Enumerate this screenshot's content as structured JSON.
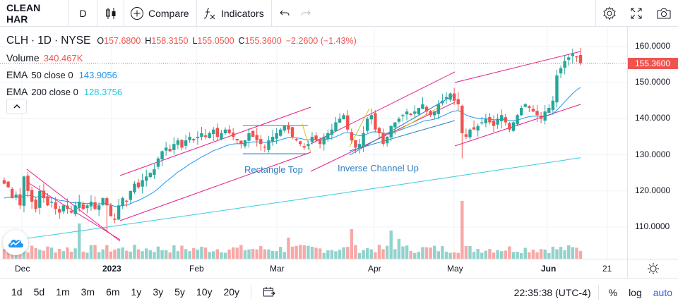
{
  "toolbar": {
    "symbol": "CLEAN HAR",
    "interval": "D",
    "compare_label": "Compare",
    "indicators_label": "Indicators"
  },
  "legend": {
    "ticker": "CLH",
    "interval": "1D",
    "exchange": "NYSE",
    "open_label": "O",
    "open": "157.6800",
    "high_label": "H",
    "high": "158.3150",
    "low_label": "L",
    "low": "155.0500",
    "close_label": "C",
    "close": "155.3600",
    "change": "−2.2600 (−1.43%)",
    "volume_label": "Volume",
    "volume": "340.467K",
    "ema50_label": "EMA",
    "ema50_params": "50 close 0",
    "ema50_value": "143.9056",
    "ema200_label": "EMA",
    "ema200_params": "200 close 0",
    "ema200_value": "128.3756"
  },
  "price_scale": {
    "ticks": [
      "160.0000",
      "150.0000",
      "140.0000",
      "130.0000",
      "120.0000",
      "110.0000"
    ],
    "last_price": "155.3600"
  },
  "time_scale": {
    "ticks": [
      {
        "label": "Dec",
        "bold": false
      },
      {
        "label": "2023",
        "bold": true
      },
      {
        "label": "Feb",
        "bold": false
      },
      {
        "label": "Mar",
        "bold": false
      },
      {
        "label": "Apr",
        "bold": false
      },
      {
        "label": "May",
        "bold": false
      },
      {
        "label": "Jun",
        "bold": true
      },
      {
        "label": "21",
        "bold": false
      }
    ]
  },
  "annotations": {
    "rectangle_top": "Rectangle Top",
    "inverse_channel_up": "Inverse Channel Up"
  },
  "bottom": {
    "ranges": [
      "1d",
      "5d",
      "1m",
      "3m",
      "6m",
      "1y",
      "3y",
      "5y",
      "10y",
      "20y"
    ],
    "time": "22:35:38 (UTC-4)",
    "percent": "%",
    "log": "log",
    "auto": "auto"
  },
  "colors": {
    "up": "#26a69a",
    "down": "#ef5350",
    "ema50": "#2196f3",
    "ema200": "#26c6da",
    "pattern": "#e91e8c",
    "accent": "#2962ff"
  },
  "chart_data": {
    "type": "candlestick",
    "symbol": "CLH",
    "interval": "1D",
    "ylim": [
      103,
      166
    ],
    "x_ticks": [
      "Dec",
      "2023",
      "Feb",
      "Mar",
      "Apr",
      "May",
      "Jun",
      "21"
    ],
    "y_ticks": [
      160,
      150,
      140,
      130,
      120,
      110
    ],
    "ema50_last": 143.9056,
    "ema200_last": 128.3756,
    "last": {
      "open": 157.68,
      "high": 158.315,
      "low": 155.05,
      "close": 155.36,
      "volume": "340.467K"
    },
    "closes": [
      122,
      121,
      118,
      119,
      116,
      124,
      120,
      117,
      115,
      120,
      118,
      116,
      117,
      115,
      114,
      116,
      115,
      114,
      116,
      117,
      115,
      116,
      117,
      115,
      116,
      118,
      116,
      113,
      112,
      116,
      118,
      117,
      120,
      122,
      121,
      123,
      124,
      125,
      126,
      129,
      131,
      132,
      131,
      133,
      134,
      132,
      134,
      135,
      134,
      135,
      136,
      135,
      136,
      137,
      135,
      136,
      137,
      136,
      135,
      134,
      133,
      134,
      136,
      135,
      134,
      133,
      132,
      134,
      135,
      136,
      137,
      138,
      137,
      135,
      134,
      133,
      132,
      133,
      135,
      134,
      133,
      135,
      136,
      137,
      139,
      140,
      141,
      137,
      134,
      132,
      133,
      136,
      140,
      141,
      137,
      136,
      133,
      135,
      138,
      139,
      140,
      141,
      142,
      141,
      142,
      143,
      144,
      142,
      141,
      142,
      144,
      145,
      146,
      147,
      145,
      144,
      136,
      135,
      137,
      137,
      138,
      139,
      140,
      139,
      138,
      140,
      141,
      139,
      137,
      139,
      141,
      143,
      144,
      143,
      142,
      141,
      140,
      142,
      143,
      145,
      152,
      154,
      156,
      157,
      158,
      157,
      155.36
    ]
  }
}
